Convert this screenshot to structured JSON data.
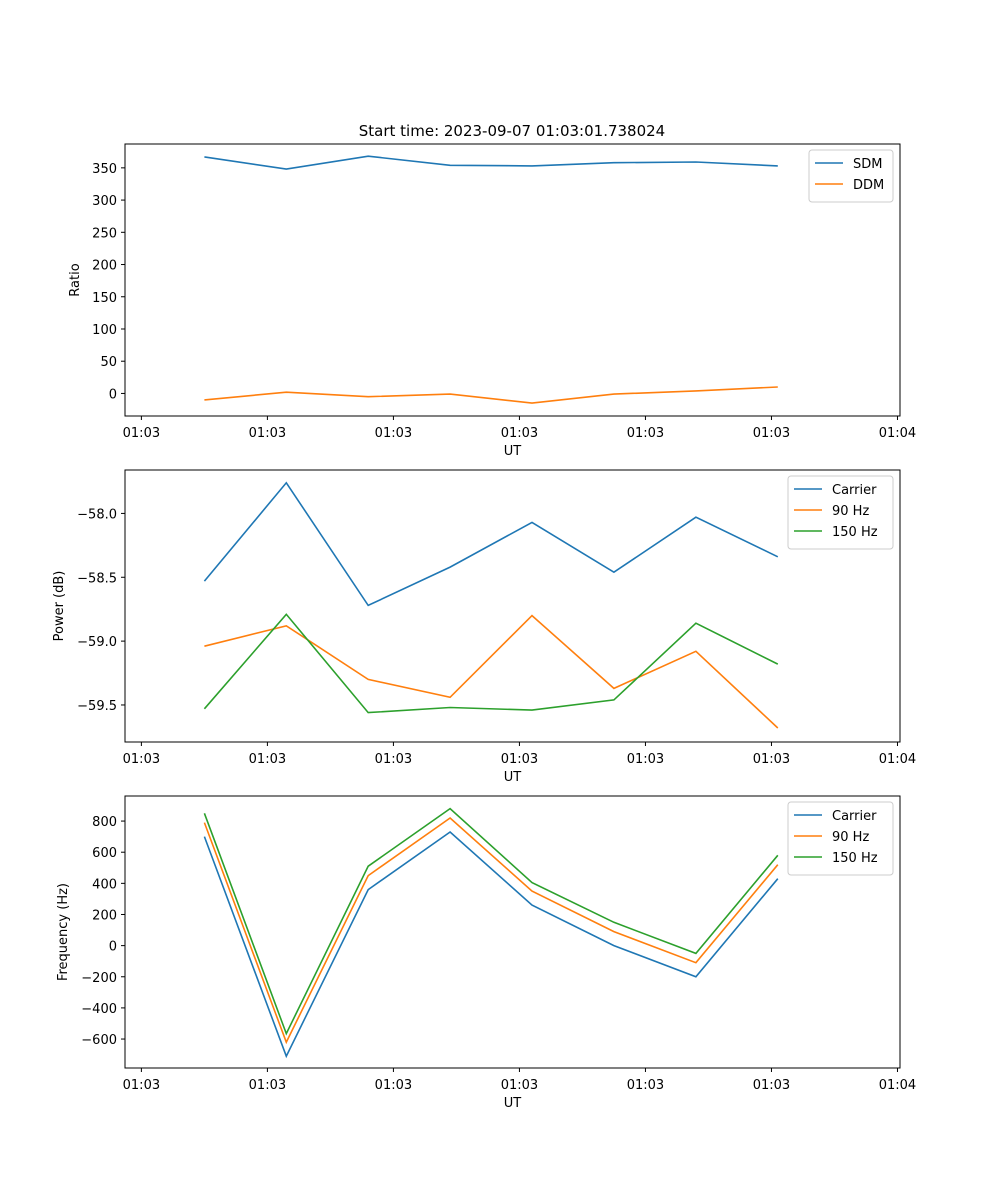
{
  "figure_title": "Start time: 2023-09-07 01:03:01.738024",
  "chart_data": [
    {
      "type": "line",
      "title": "Start time: 2023-09-07 01:03:01.738024",
      "xlabel": "UT",
      "ylabel": "Ratio",
      "x_tick_labels": [
        "01:03",
        "01:03",
        "01:03",
        "01:03",
        "01:03",
        "01:03",
        "01:04"
      ],
      "x_tick_values": [
        0,
        1,
        2,
        3,
        4,
        5,
        6
      ],
      "xlim": [
        -0.13,
        6.02
      ],
      "ylim": [
        -35,
        387
      ],
      "y_ticks": [
        0,
        50,
        100,
        150,
        200,
        250,
        300,
        350
      ],
      "y_tick_labels": [
        "0",
        "50",
        "100",
        "150",
        "200",
        "250",
        "300",
        "350"
      ],
      "legend_position": "top-right",
      "x": [
        0.5,
        1.15,
        1.8,
        2.45,
        3.1,
        3.75,
        4.4,
        5.05
      ],
      "series": [
        {
          "name": "SDM",
          "color": "#1f77b4",
          "values": [
            367,
            348,
            368,
            354,
            353,
            358,
            359,
            353
          ]
        },
        {
          "name": "DDM",
          "color": "#ff7f0e",
          "values": [
            -10,
            2,
            -5,
            -1,
            -15,
            -1,
            4,
            10
          ]
        }
      ]
    },
    {
      "type": "line",
      "title": "",
      "xlabel": "UT",
      "ylabel": "Power (dB)",
      "x_tick_labels": [
        "01:03",
        "01:03",
        "01:03",
        "01:03",
        "01:03",
        "01:03",
        "01:04"
      ],
      "x_tick_values": [
        0,
        1,
        2,
        3,
        4,
        5,
        6
      ],
      "xlim": [
        -0.13,
        6.02
      ],
      "ylim": [
        -59.79,
        -57.66
      ],
      "y_ticks": [
        -59.5,
        -59.0,
        -58.5,
        -58.0
      ],
      "y_tick_labels": [
        "−59.5",
        "−59.0",
        "−58.5",
        "−58.0"
      ],
      "legend_position": "top-right",
      "x": [
        0.5,
        1.15,
        1.8,
        2.45,
        3.1,
        3.75,
        4.4,
        5.05
      ],
      "series": [
        {
          "name": "Carrier",
          "color": "#1f77b4",
          "values": [
            -58.53,
            -57.76,
            -58.72,
            -58.42,
            -58.07,
            -58.46,
            -58.03,
            -58.34
          ]
        },
        {
          "name": "90 Hz",
          "color": "#ff7f0e",
          "values": [
            -59.04,
            -58.88,
            -59.3,
            -59.44,
            -58.8,
            -59.37,
            -59.08,
            -59.68
          ]
        },
        {
          "name": "150 Hz",
          "color": "#2ca02c",
          "values": [
            -59.53,
            -58.79,
            -59.56,
            -59.52,
            -59.54,
            -59.46,
            -58.86,
            -59.18
          ]
        }
      ]
    },
    {
      "type": "line",
      "title": "",
      "xlabel": "UT",
      "ylabel": "Frequency (Hz)",
      "x_tick_labels": [
        "01:03",
        "01:03",
        "01:03",
        "01:03",
        "01:03",
        "01:03",
        "01:04"
      ],
      "x_tick_values": [
        0,
        1,
        2,
        3,
        4,
        5,
        6
      ],
      "xlim": [
        -0.13,
        6.02
      ],
      "ylim": [
        -786,
        961
      ],
      "y_ticks": [
        -600,
        -400,
        -200,
        0,
        200,
        400,
        600,
        800
      ],
      "y_tick_labels": [
        "−600",
        "−400",
        "−200",
        "0",
        "200",
        "400",
        "600",
        "800"
      ],
      "legend_position": "top-right",
      "x": [
        0.5,
        1.15,
        1.8,
        2.45,
        3.1,
        3.75,
        4.4,
        5.05
      ],
      "series": [
        {
          "name": "Carrier",
          "color": "#1f77b4",
          "values": [
            700,
            -710,
            360,
            730,
            260,
            0,
            -200,
            430
          ]
        },
        {
          "name": "90 Hz",
          "color": "#ff7f0e",
          "values": [
            790,
            -620,
            450,
            820,
            350,
            90,
            -110,
            520
          ]
        },
        {
          "name": "150 Hz",
          "color": "#2ca02c",
          "values": [
            850,
            -565,
            510,
            880,
            405,
            150,
            -50,
            580
          ]
        }
      ]
    }
  ]
}
